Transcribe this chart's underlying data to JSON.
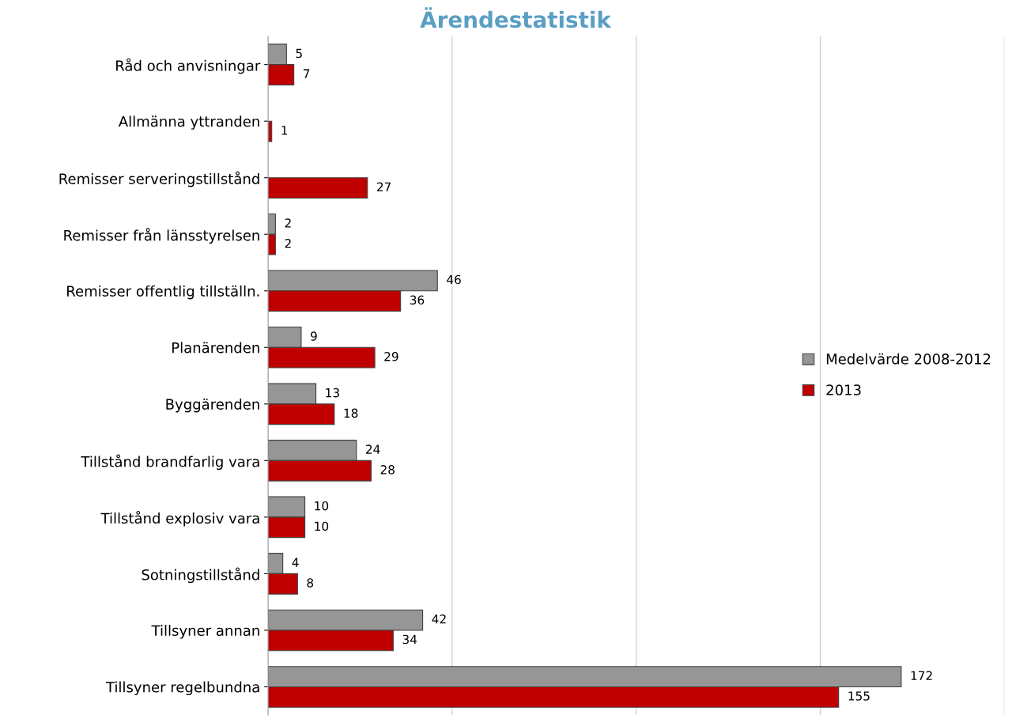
{
  "chart_data": {
    "type": "bar",
    "orientation": "horizontal",
    "title": "Ärendestatistik",
    "categories": [
      "Råd och anvisningar",
      "Allmänna yttranden",
      "Remisser serveringstillstånd",
      "Remisser från länsstyrelsen",
      "Remisser offentlig tillställn.",
      "Planärenden",
      "Byggärenden",
      "Tillstånd brandfarlig vara",
      "Tillstånd explosiv vara",
      "Sotningstillstånd",
      "Tillsyner annan",
      "Tillsyner regelbundna"
    ],
    "series": [
      {
        "name": "Medelvärde 2008-2012",
        "color": "#969696",
        "values": [
          5,
          null,
          null,
          2,
          46,
          9,
          13,
          24,
          10,
          4,
          42,
          172
        ]
      },
      {
        "name": "2013",
        "color": "#c00000",
        "values": [
          7,
          1,
          27,
          2,
          36,
          29,
          18,
          28,
          10,
          8,
          34,
          155
        ]
      }
    ],
    "xlim": [
      0,
      200
    ],
    "xticks": [
      {
        "value": 0,
        "label": null
      },
      {
        "value": 50,
        "label": null
      },
      {
        "value": 100,
        "label": null
      },
      {
        "value": 150,
        "label": null
      },
      {
        "value": 200,
        "label": null
      }
    ],
    "grid": "x",
    "legend": "right",
    "data_labels": true,
    "tick_labels": "y"
  }
}
